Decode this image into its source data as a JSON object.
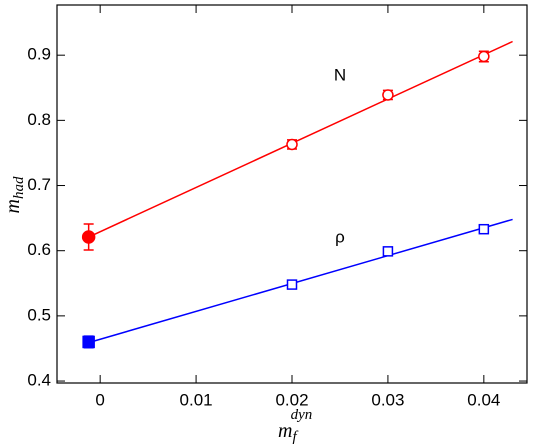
{
  "chart_data": {
    "type": "scatter",
    "xlabel": "m",
    "xlabel_sub": "f",
    "xlabel_sup": "dyn",
    "ylabel": "m",
    "ylabel_sub": "had",
    "xlim": [
      -0.0045,
      0.0445
    ],
    "ylim": [
      0.397,
      0.977
    ],
    "xticks": [
      0,
      0.01,
      0.02,
      0.03,
      0.04
    ],
    "yticks": [
      0.4,
      0.5,
      0.6,
      0.7,
      0.8,
      0.9
    ],
    "series": [
      {
        "name": "N",
        "color": "#ff0000",
        "marker": "circle",
        "x": [
          -0.0012,
          0.02,
          0.03,
          0.04
        ],
        "values": [
          0.621,
          0.763,
          0.839,
          0.898
        ],
        "errors": [
          0.02,
          0.007,
          0.007,
          0.008
        ],
        "filled": [
          true,
          false,
          false,
          false
        ],
        "fit": {
          "x": [
            -0.0012,
            0.043
          ],
          "values": [
            0.621,
            0.921
          ]
        }
      },
      {
        "name": "ρ",
        "color": "#0000ff",
        "marker": "square",
        "x": [
          -0.0012,
          0.02,
          0.03,
          0.04
        ],
        "values": [
          0.46,
          0.548,
          0.599,
          0.633
        ],
        "errors": [
          0.009,
          0.005,
          0.004,
          0.005
        ],
        "filled": [
          true,
          false,
          false,
          false
        ],
        "fit": {
          "x": [
            -0.0012,
            0.043
          ],
          "values": [
            0.459,
            0.648
          ]
        }
      }
    ]
  }
}
